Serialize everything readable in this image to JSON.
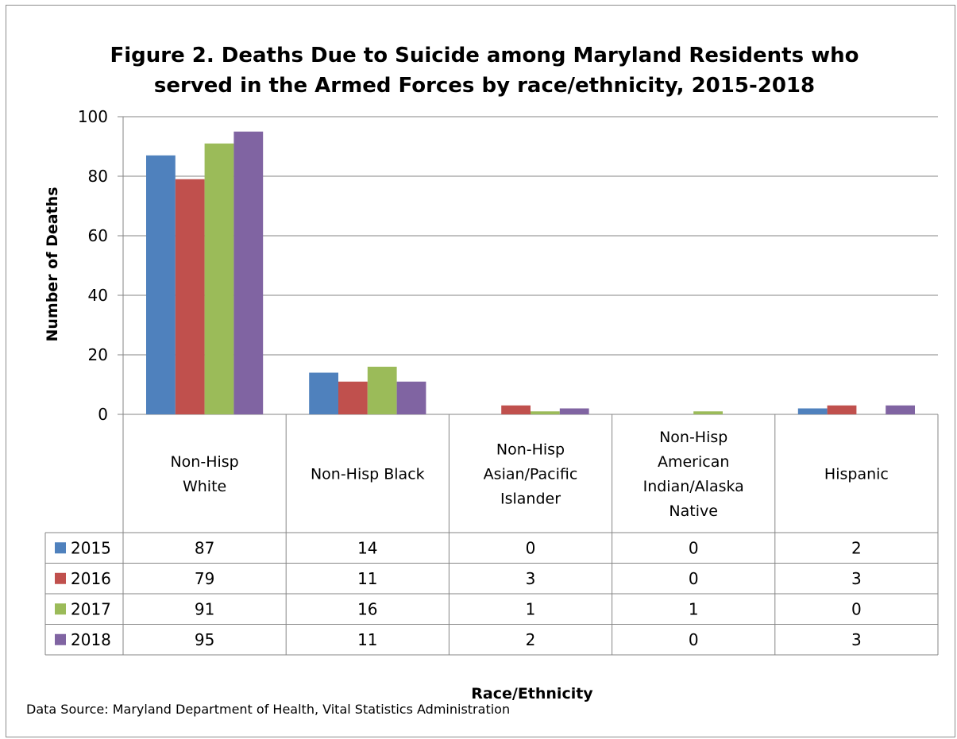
{
  "chart_data": {
    "type": "bar",
    "title": "Figure 2. Deaths Due to Suicide among Maryland Residents who served in the Armed Forces by race/ethnicity, 2015-2018",
    "title_lines": [
      "Figure 2. Deaths Due to Suicide among Maryland Residents who",
      "served in the Armed Forces by race/ethnicity, 2015-2018"
    ],
    "ylabel": "Number of Deaths",
    "xlabel": "Race/Ethnicity",
    "ylim": [
      0,
      100
    ],
    "yticks": [
      "0",
      "20",
      "40",
      "60",
      "80",
      "100"
    ],
    "grid": true,
    "legend": "data-table",
    "categories": [
      "Non-Hisp White",
      "Non-Hisp Black",
      "Non-Hisp Asian/Pacific Islander",
      "Non-Hisp American Indian/Alaska Native",
      "Hispanic"
    ],
    "category_lines": [
      [
        "Non-Hisp",
        "White"
      ],
      [
        "Non-Hisp Black"
      ],
      [
        "Non-Hisp",
        "Asian/Pacific",
        "Islander"
      ],
      [
        "Non-Hisp",
        "American",
        "Indian/Alaska",
        "Native"
      ],
      [
        "Hispanic"
      ]
    ],
    "series": [
      {
        "name": "2015",
        "color": "#4f81bd",
        "values": [
          87,
          14,
          0,
          0,
          2
        ]
      },
      {
        "name": "2016",
        "color": "#c0504d",
        "values": [
          79,
          11,
          3,
          0,
          3
        ]
      },
      {
        "name": "2017",
        "color": "#9bbb59",
        "values": [
          91,
          16,
          1,
          1,
          0
        ]
      },
      {
        "name": "2018",
        "color": "#8064a2",
        "values": [
          95,
          11,
          2,
          0,
          3
        ]
      }
    ]
  },
  "source": "Data Source: Maryland Department of Health, Vital Statistics Administration"
}
